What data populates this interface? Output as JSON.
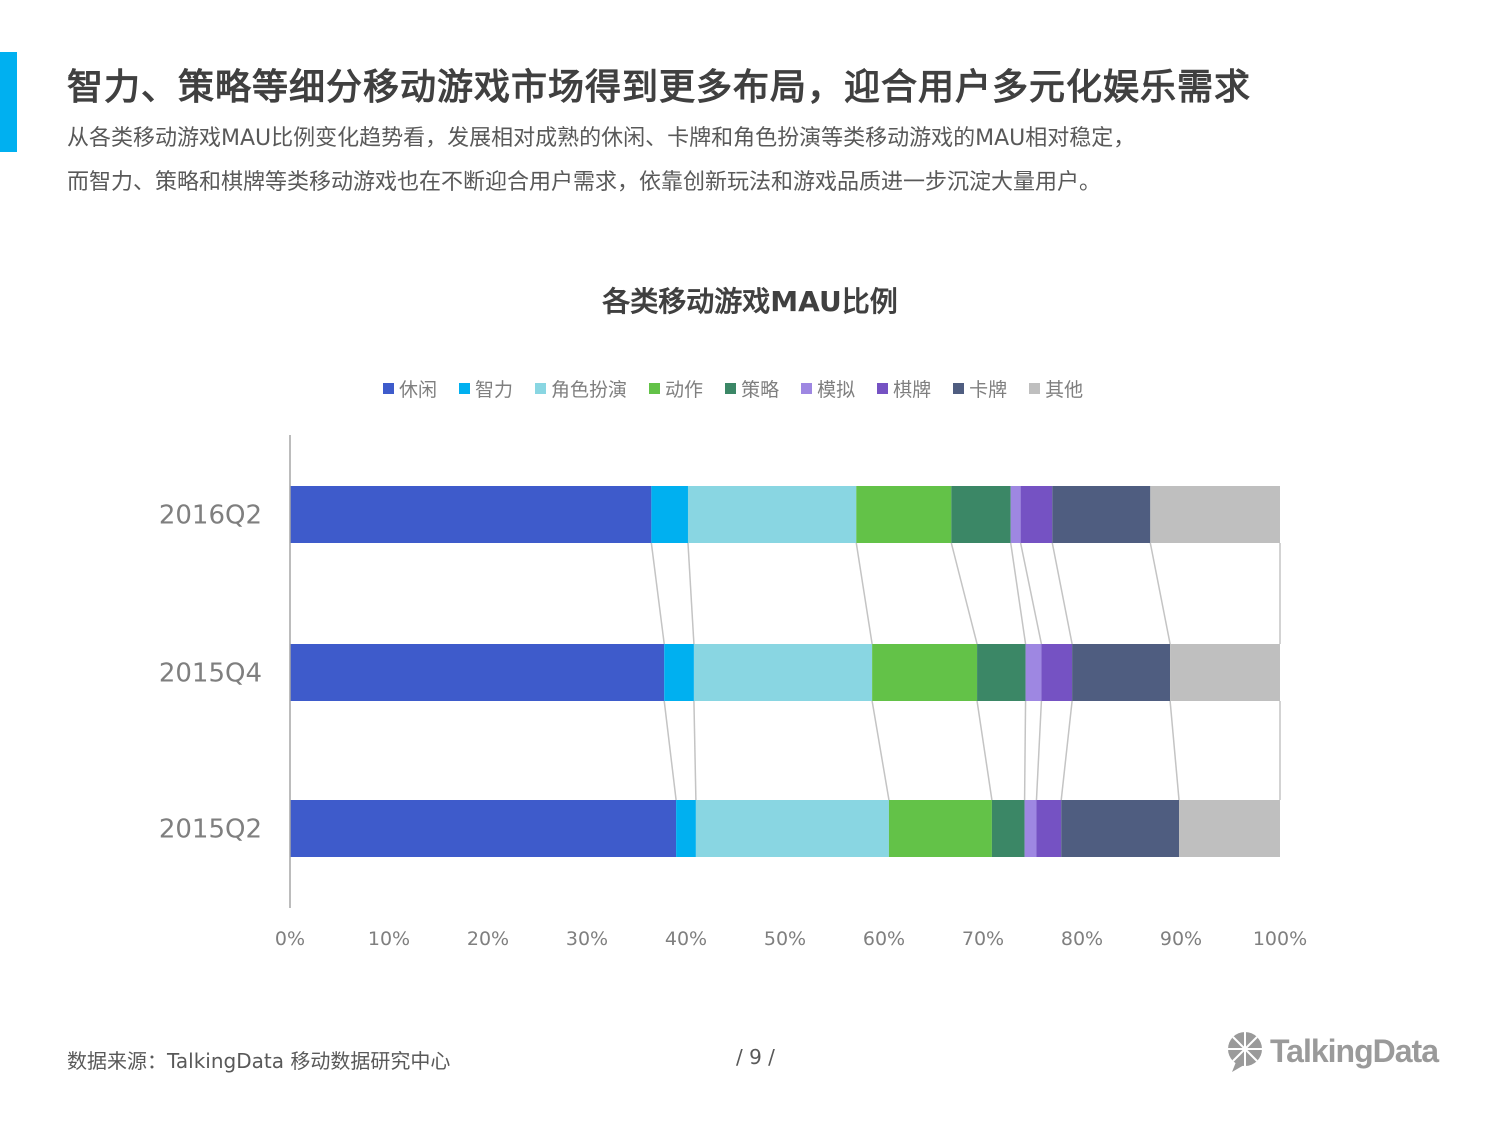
{
  "header": {
    "headline": "智力、策略等细分移动游戏市场得到更多布局，迎合用户多元化娱乐需求",
    "subtext_line1": "从各类移动游戏MAU比例变化趋势看，发展相对成熟的休闲、卡牌和角色扮演等类移动游戏的MAU相对稳定，",
    "subtext_line2": "而智力、策略和棋牌等类移动游戏也在不断迎合用户需求，依靠创新玩法和游戏品质进一步沉淀大量用户。",
    "accent_color": "#00b0f0"
  },
  "chart_data": {
    "type": "bar",
    "orientation": "horizontal",
    "stacked": true,
    "normalized": true,
    "title": "各类移动游戏MAU比例",
    "categories": [
      "2016Q2",
      "2015Q4",
      "2015Q2"
    ],
    "series": [
      {
        "name": "休闲",
        "color": "#3e5bcb",
        "values": [
          36.5,
          37.8,
          39.0
        ]
      },
      {
        "name": "智力",
        "color": "#00b0f0",
        "values": [
          3.7,
          3.0,
          2.0
        ]
      },
      {
        "name": "角色扮演",
        "color": "#89d6e2",
        "values": [
          17.0,
          18.0,
          19.5
        ]
      },
      {
        "name": "动作",
        "color": "#63c248",
        "values": [
          9.6,
          10.6,
          10.4
        ]
      },
      {
        "name": "策略",
        "color": "#3b8766",
        "values": [
          6.0,
          4.9,
          3.3
        ]
      },
      {
        "name": "模拟",
        "color": "#9e87e2",
        "values": [
          1.0,
          1.6,
          1.2
        ]
      },
      {
        "name": "棋牌",
        "color": "#7552c3",
        "values": [
          3.2,
          3.1,
          2.5
        ]
      },
      {
        "name": "卡牌",
        "color": "#4f5d80",
        "values": [
          9.9,
          9.9,
          11.9
        ]
      },
      {
        "name": "其他",
        "color": "#bfbfbf",
        "values": [
          13.1,
          11.1,
          10.2
        ]
      }
    ],
    "x_ticks": [
      "0%",
      "10%",
      "20%",
      "30%",
      "40%",
      "50%",
      "60%",
      "70%",
      "80%",
      "90%",
      "100%"
    ],
    "xlim": [
      0,
      100
    ],
    "grid": false,
    "legend_position": "top"
  },
  "footer": {
    "source": "数据来源：TalkingData  移动数据研究中心",
    "page": "/  9  /",
    "logo_text": "TalkingData"
  }
}
